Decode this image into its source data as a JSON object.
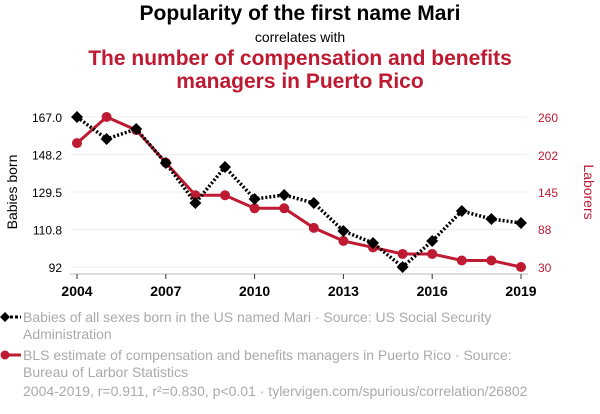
{
  "header": {
    "title": "Popularity of the first name Mari",
    "connector": "correlates with",
    "subtitle_line1": "The number of compensation and benefits",
    "subtitle_line2": "managers in Puerto Rico"
  },
  "colors": {
    "series1": "#000000",
    "series2": "#be1a32",
    "grid": "#eeeeee",
    "legend_text": "#aaaaaa"
  },
  "chart_data": {
    "type": "line",
    "title": "Popularity of the first name Mari correlates with The number of compensation and benefits managers in Puerto Rico",
    "x": [
      2004,
      2005,
      2006,
      2007,
      2008,
      2009,
      2010,
      2011,
      2012,
      2013,
      2014,
      2015,
      2016,
      2017,
      2018,
      2019
    ],
    "xticks": [
      "2004",
      "2007",
      "2010",
      "2013",
      "2016",
      "2019"
    ],
    "xtick_values": [
      2004,
      2007,
      2010,
      2013,
      2016,
      2019
    ],
    "xlim": [
      2004,
      2019
    ],
    "ylabel_left": "Babies born",
    "ylabel_right": "Laborers",
    "yticks_left": [
      "167.0",
      "148.2",
      "129.5",
      "110.8",
      "92"
    ],
    "yticks_left_values": [
      167.0,
      148.2,
      129.5,
      110.8,
      92
    ],
    "ylim_left": [
      92,
      167
    ],
    "yticks_right": [
      "260",
      "202",
      "145",
      "88",
      "30"
    ],
    "yticks_right_values": [
      260,
      202,
      145,
      88,
      30
    ],
    "ylim_right": [
      30,
      260
    ],
    "grid": true,
    "series": [
      {
        "name": "Babies of all sexes born in the US named Mari",
        "axis": "left",
        "style": "dotted-diamond",
        "values": [
          167,
          156,
          161,
          144,
          124,
          142,
          126,
          128,
          124,
          110,
          104,
          92,
          105,
          120,
          116,
          114
        ]
      },
      {
        "name": "BLS estimate of compensation and benefits managers in Puerto Rico",
        "axis": "right",
        "style": "solid-circle",
        "values": [
          220,
          260,
          240,
          190,
          140,
          140,
          120,
          120,
          90,
          70,
          60,
          50,
          50,
          40,
          40,
          30
        ]
      }
    ]
  },
  "legend": {
    "items": [
      {
        "line1": "Babies of all sexes born in the US named Mari · Source: US Social Security",
        "line2": "Administration"
      },
      {
        "line1": "BLS estimate of compensation and benefits managers in Puerto Rico · Source:",
        "line2": "Bureau of Larbor Statistics"
      }
    ]
  },
  "footer": "2004-2019, r=0.911, r²=0.830, p<0.01 · tylervigen.com/spurious/correlation/26802"
}
